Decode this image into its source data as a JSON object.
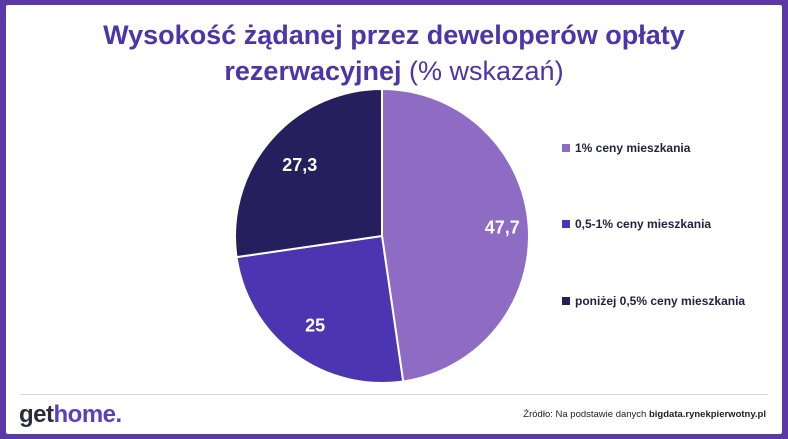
{
  "header": {
    "title_bold_line1": "Wysokość żądanej przez deweloperów opłaty",
    "title_bold_line2": "rezerwacyjnej",
    "title_light": "(% wskazań)"
  },
  "chart_data": {
    "type": "pie",
    "title": "Wysokość żądanej przez deweloperów opłaty rezerwacyjnej (% wskazań)",
    "legend_position": "right",
    "slices": [
      {
        "name": "1% ceny mieszkania",
        "value": 47.7,
        "label": "47,7",
        "color": "#8f6cc4"
      },
      {
        "name": "0,5-1% ceny mieszkania",
        "value": 25,
        "label": "25",
        "color": "#4b35b0"
      },
      {
        "name": "poniżej 0,5% ceny mieszkania",
        "value": 27.3,
        "label": "27,3",
        "color": "#251f5e"
      }
    ]
  },
  "footer": {
    "logo_get": "get",
    "logo_home": "home.",
    "source_prefix": "Źródło: Na podstawie danych",
    "source_site": "bigdata.rynekpierwotny.pl"
  }
}
